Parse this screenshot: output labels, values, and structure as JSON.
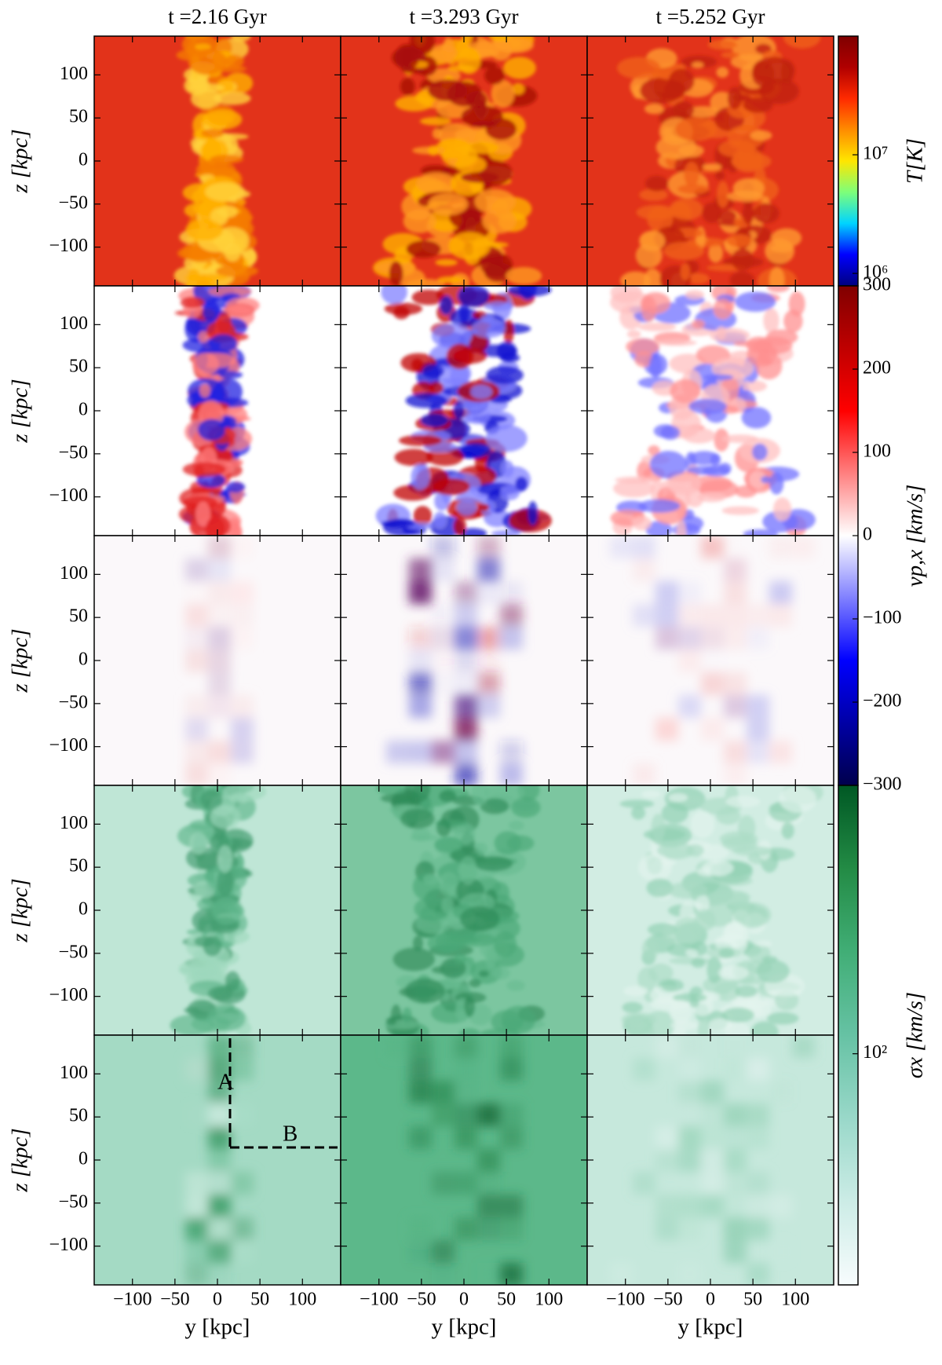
{
  "chart_data": {
    "type": "image-grid",
    "column_titles": [
      "t =2.16 Gyr",
      "t =3.293 Gyr",
      "t =5.252 Gyr"
    ],
    "xlabel": "y [kpc]",
    "ylabel": "z [kpc]",
    "xlim": [
      -145,
      145
    ],
    "xticks": [
      {
        "value": -100,
        "label": "−100"
      },
      {
        "value": -50,
        "label": "−50"
      },
      0,
      50,
      100
    ],
    "ylim": [
      -145,
      145
    ],
    "yticks": [
      {
        "value": -100,
        "label": "−100"
      },
      {
        "value": -50,
        "label": "−50"
      },
      0,
      50,
      100
    ],
    "colorbars": [
      {
        "label": "T[K]",
        "log": true,
        "lim": [
          785000,
          100000000
        ],
        "ticks": [
          {
            "value": 1000000,
            "label": "10⁶"
          },
          {
            "value": 10000000,
            "label": "10⁷"
          }
        ],
        "colors": [
          "#00007f",
          "#0000ff",
          "#00d4ff",
          "#7dff7a",
          "#ffe600",
          "#ff8c00",
          "#ff2a00",
          "#b00000",
          "#7f0000"
        ]
      },
      {
        "label": "vp,x [km/s]",
        "log": false,
        "lim": [
          -300,
          300
        ],
        "ticks": [
          {
            "value": -300,
            "label": "−300"
          },
          {
            "value": -200,
            "label": "−200"
          },
          {
            "value": -100,
            "label": "−100"
          },
          0,
          100,
          200,
          300
        ],
        "colors": [
          "#00004c",
          "#0000ff",
          "#ffffff",
          "#ff0000",
          "#800000"
        ]
      },
      {
        "label": "σx [km/s]",
        "log": true,
        "lim": [
          25,
          500
        ],
        "ticks": [
          {
            "value": 100,
            "label": "10²"
          }
        ],
        "colors": [
          "#f7fcfd",
          "#ccece6",
          "#99d8c9",
          "#66c2a4",
          "#41ae76",
          "#238b45",
          "#005824"
        ]
      }
    ],
    "annotations": [
      "A",
      "B"
    ]
  }
}
